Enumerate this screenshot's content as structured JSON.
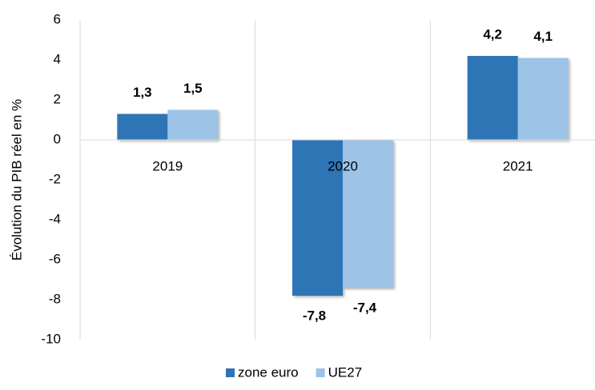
{
  "chart_data": {
    "type": "bar",
    "y_label": "Évolution du PIB réel en %",
    "categories": [
      "2019",
      "2020",
      "2021"
    ],
    "series": [
      {
        "name": "zone euro",
        "color": "#2e75b6",
        "values": [
          1.3,
          -7.8,
          4.2
        ],
        "value_labels": [
          "1,3",
          "-7,8",
          "4,2"
        ]
      },
      {
        "name": "UE27",
        "color": "#9dc3e6",
        "values": [
          1.5,
          -7.4,
          4.1
        ],
        "value_labels": [
          "1,5",
          "-7,4",
          "4,1"
        ]
      }
    ],
    "ylim": [
      -10,
      6
    ],
    "yticks": [
      -10,
      -8,
      -6,
      -4,
      -2,
      0,
      2,
      4,
      6
    ],
    "grid": false,
    "legend": "bottom"
  }
}
